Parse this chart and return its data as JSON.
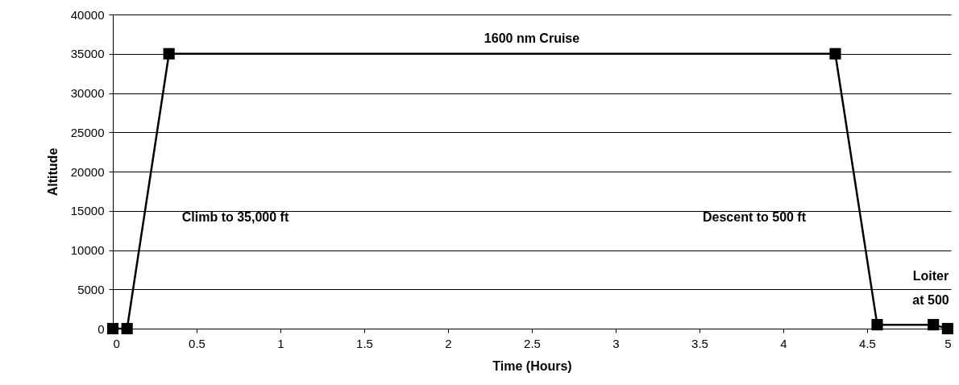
{
  "chart_data": {
    "type": "line",
    "xlabel": "Time (Hours)",
    "ylabel": "Altitude",
    "x": [
      0,
      0.085,
      0.335,
      4.31,
      4.56,
      4.895,
      4.98
    ],
    "series": [
      {
        "color": "#000000",
        "values": [
          0,
          0,
          35000,
          35000,
          500,
          500,
          0
        ]
      }
    ],
    "xlim": [
      0,
      5
    ],
    "xticks": [
      0,
      0.5,
      1,
      1.5,
      2,
      2.5,
      3,
      3.5,
      4,
      4.5,
      5
    ],
    "ylim": [
      0,
      40000
    ],
    "yticks": [
      0,
      5000,
      10000,
      15000,
      20000,
      25000,
      30000,
      35000,
      40000
    ],
    "grid": "y",
    "marker": "square",
    "line_style": "solid",
    "annotations": [
      "1600 nm Cruise",
      "Climb to 35,000 ft",
      "Descent to 500 ft",
      "Loiter\nat 500"
    ]
  }
}
